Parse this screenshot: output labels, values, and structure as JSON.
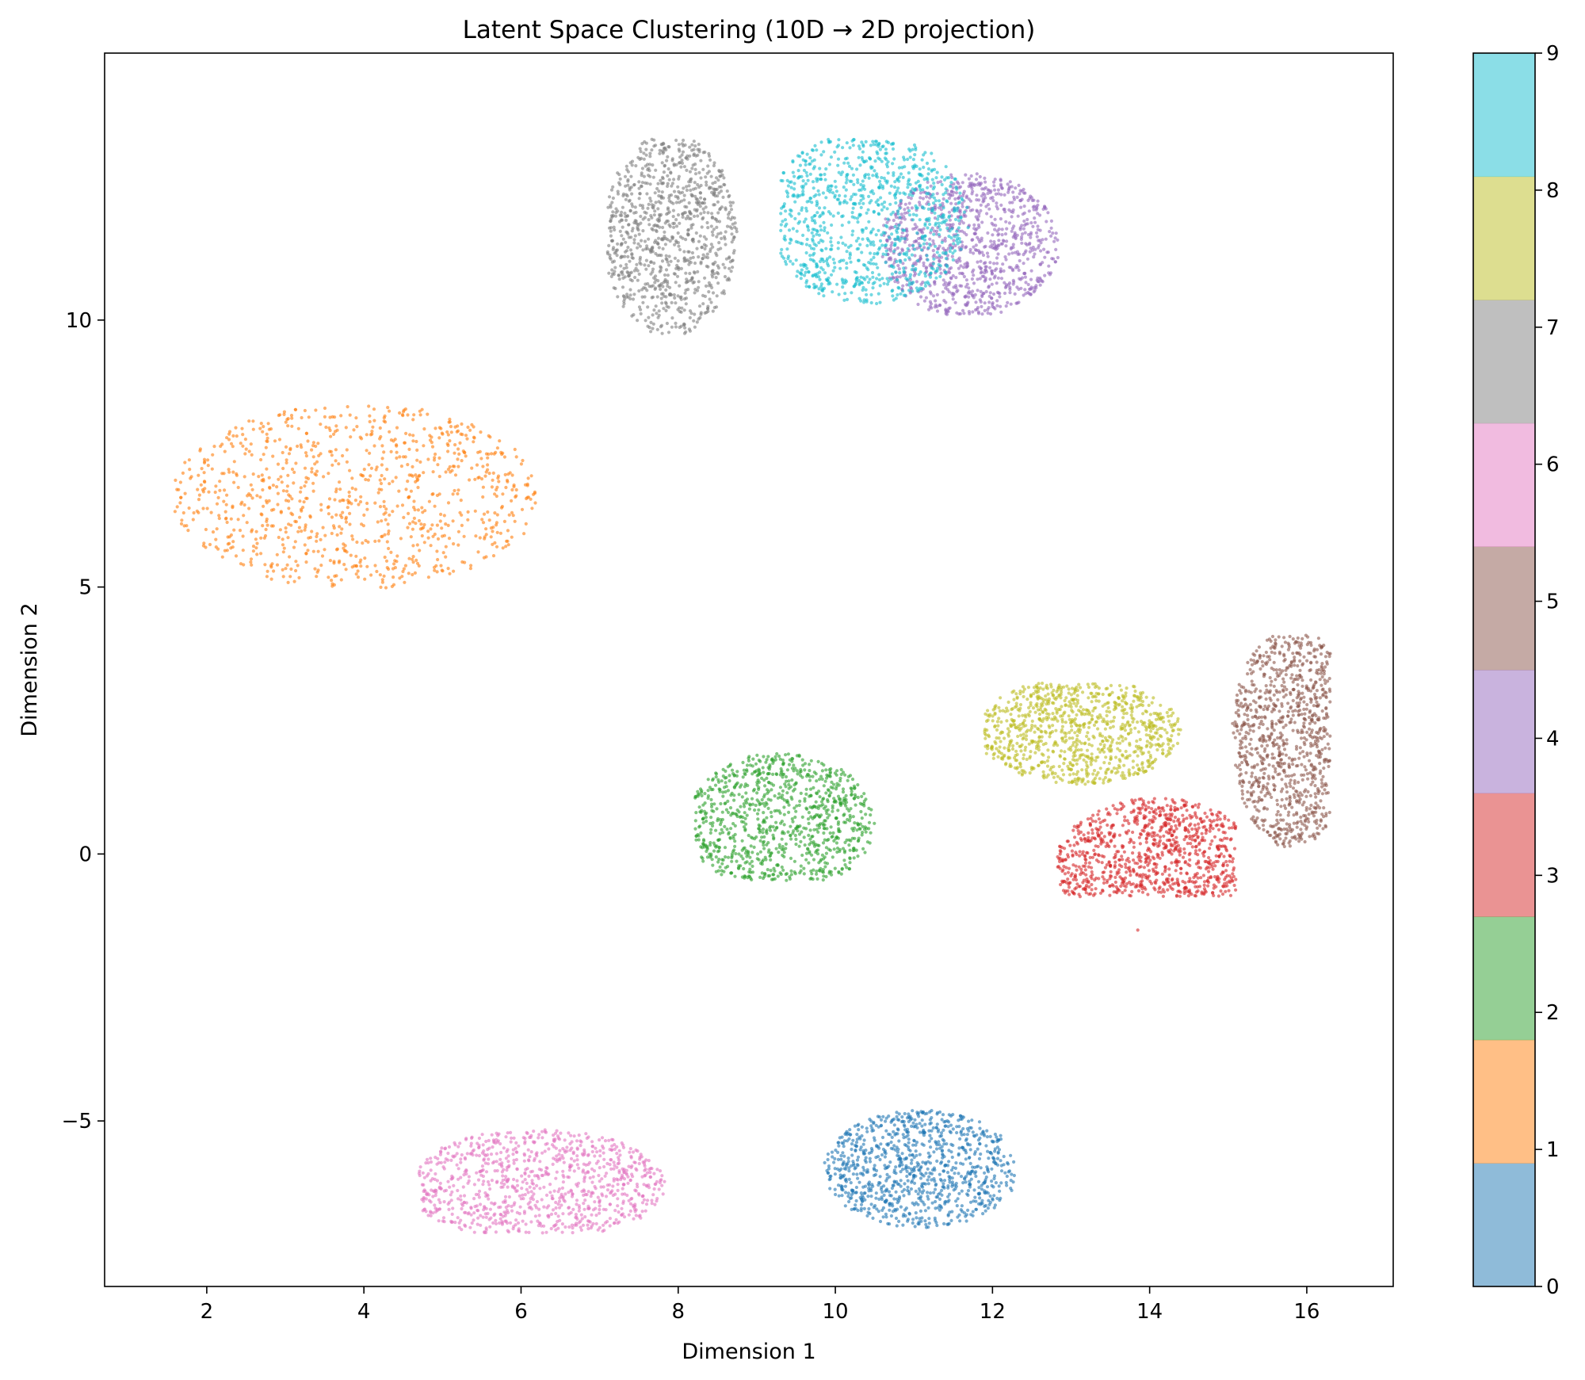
{
  "chart_data": {
    "type": "scatter",
    "title": "Latent Space Clustering (10D → 2D projection)",
    "xlabel": "Dimension 1",
    "ylabel": "Dimension 2",
    "xlim": [
      0.7,
      17.1
    ],
    "ylim": [
      -8.1,
      15.0
    ],
    "xticks": [
      "2",
      "4",
      "6",
      "8",
      "10",
      "12",
      "14",
      "16"
    ],
    "xtick_values": [
      2,
      4,
      6,
      8,
      10,
      12,
      14,
      16
    ],
    "yticks": [
      "−5",
      "0",
      "5",
      "10"
    ],
    "ytick_values": [
      -5,
      0,
      5,
      10
    ],
    "grid": false,
    "colormap": "tab10",
    "colorbar": {
      "range": [
        0,
        9
      ],
      "ticks": [
        "0",
        "1",
        "2",
        "3",
        "4",
        "5",
        "6",
        "7",
        "8",
        "9"
      ],
      "tick_values": [
        0,
        1,
        2,
        3,
        4,
        5,
        6,
        7,
        8,
        9
      ],
      "colors": [
        "#1f77b4",
        "#ff7f0e",
        "#2ca02c",
        "#d62728",
        "#9467bd",
        "#8c564b",
        "#e377c2",
        "#7f7f7f",
        "#bcbd22",
        "#17becf"
      ],
      "alpha": 0.5
    },
    "marker_alpha": 0.6,
    "clusters": [
      {
        "label": 0,
        "center": [
          11.1,
          -5.9
        ],
        "extent_x": [
          9.8,
          12.3
        ],
        "extent_y": [
          -7.0,
          -4.8
        ],
        "approx_points": 950
      },
      {
        "label": 1,
        "center": [
          3.9,
          6.7
        ],
        "extent_x": [
          1.5,
          6.2
        ],
        "extent_y": [
          4.9,
          8.4
        ],
        "approx_points": 950
      },
      {
        "label": 2,
        "center": [
          9.3,
          0.6
        ],
        "extent_x": [
          8.2,
          10.6
        ],
        "extent_y": [
          -0.5,
          2.1
        ],
        "approx_points": 950
      },
      {
        "label": 3,
        "center": [
          14.1,
          -0.2
        ],
        "extent_x": [
          12.5,
          15.1
        ],
        "extent_y": [
          -0.8,
          1.7
        ],
        "approx_points": 950
      },
      {
        "label": 4,
        "center": [
          11.7,
          11.4
        ],
        "extent_x": [
          10.6,
          12.9
        ],
        "extent_y": [
          10.1,
          12.8
        ],
        "approx_points": 950
      },
      {
        "label": 5,
        "center": [
          15.8,
          2.2
        ],
        "extent_x": [
          14.8,
          16.3
        ],
        "extent_y": [
          -0.1,
          4.1
        ],
        "approx_points": 950
      },
      {
        "label": 6,
        "center": [
          6.2,
          -6.2
        ],
        "extent_x": [
          4.7,
          8.0
        ],
        "extent_y": [
          -7.1,
          -5.0
        ],
        "approx_points": 950
      },
      {
        "label": 7,
        "center": [
          7.9,
          11.6
        ],
        "extent_x": [
          7.1,
          8.8
        ],
        "extent_y": [
          9.6,
          13.4
        ],
        "approx_points": 950
      },
      {
        "label": 8,
        "center": [
          13.1,
          2.3
        ],
        "extent_x": [
          11.9,
          14.5
        ],
        "extent_y": [
          1.2,
          3.2
        ],
        "approx_points": 950
      },
      {
        "label": 9,
        "center": [
          10.4,
          11.9
        ],
        "extent_x": [
          9.3,
          11.9
        ],
        "extent_y": [
          10.2,
          13.4
        ],
        "approx_points": 950
      }
    ]
  }
}
